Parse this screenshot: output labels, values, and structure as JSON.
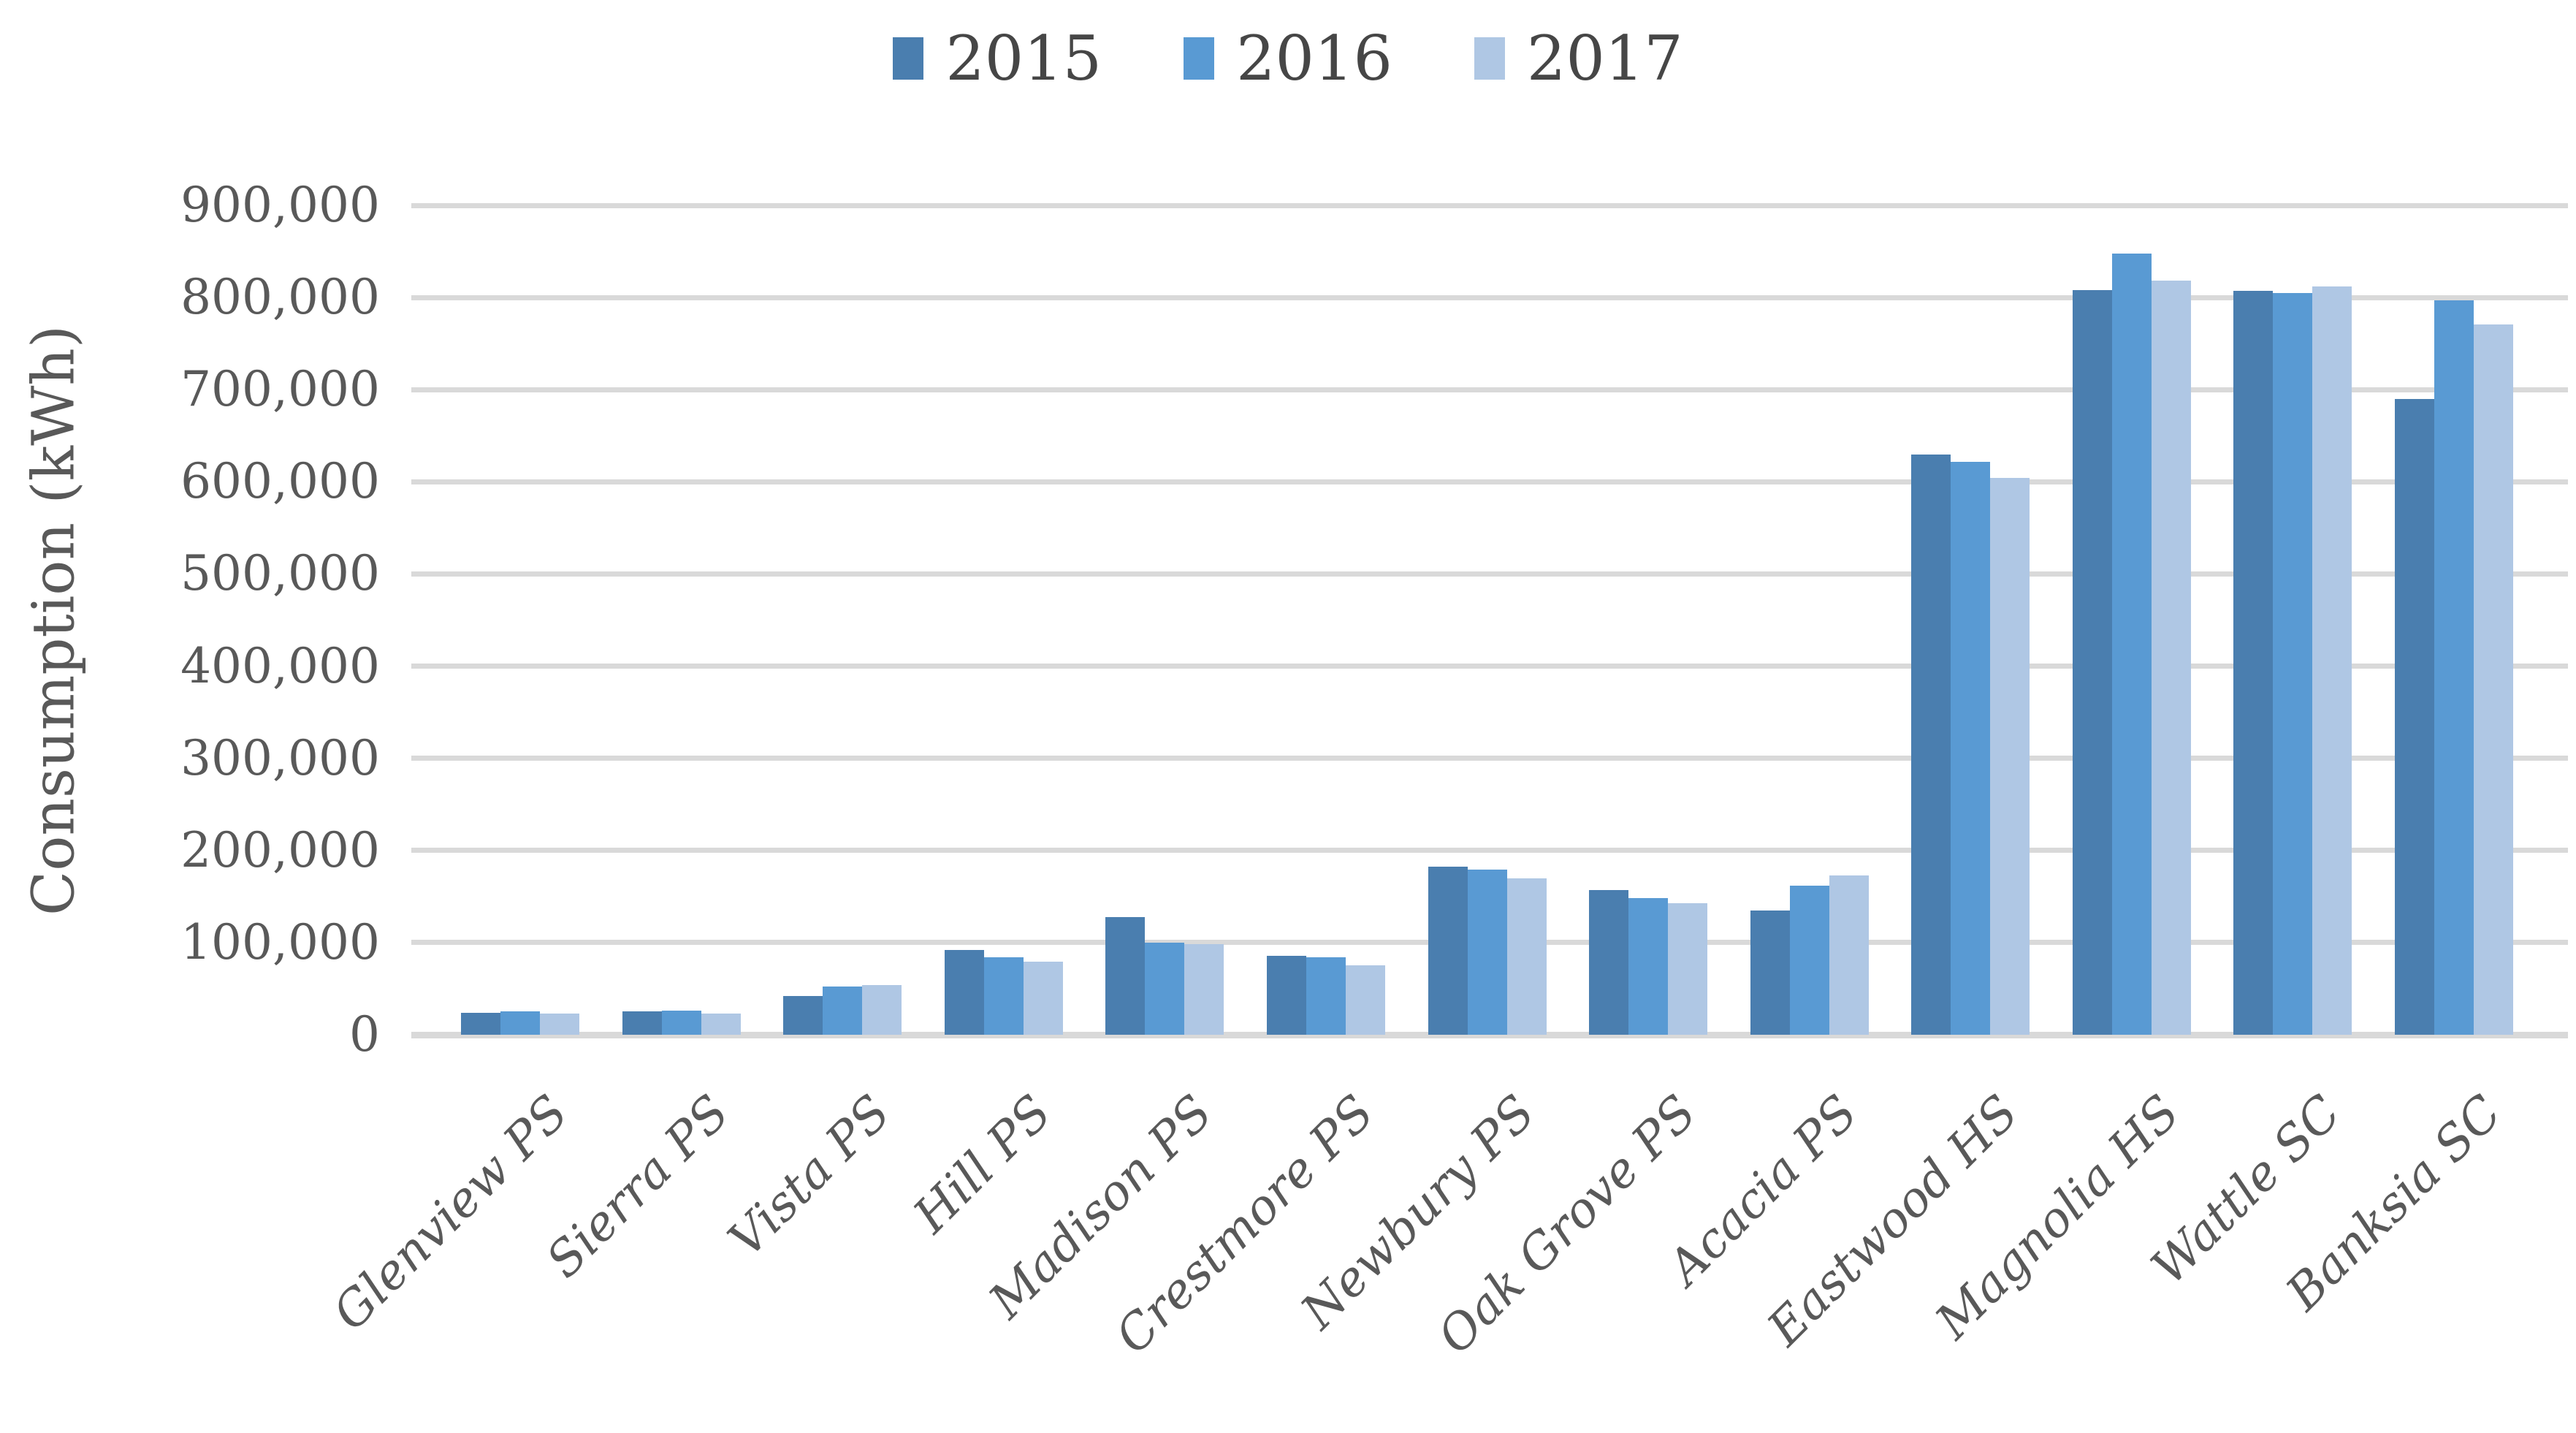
{
  "colors": {
    "grid": "#D9D9D9",
    "axis_text": "#595959",
    "legend_text": "#464646",
    "background": "#FFFFFF"
  },
  "chart_data": {
    "type": "bar",
    "title": "",
    "xlabel": "",
    "ylabel": "Consumption (kWh)",
    "ylim": [
      0,
      900000
    ],
    "ytick_step": 100000,
    "ytick_labels": [
      "0",
      "100,000",
      "200,000",
      "300,000",
      "400,000",
      "500,000",
      "600,000",
      "700,000",
      "800,000",
      "900,000"
    ],
    "grid": true,
    "legend_position": "top",
    "categories": [
      "Glenview PS",
      "Sierra PS",
      "Vista PS",
      "Hill PS",
      "Madison PS",
      "Crestmore PS",
      "Newbury PS",
      "Oak Grove PS",
      "Acacia PS",
      "Eastwood HS",
      "Magnolia HS",
      "Wattle SC",
      "Banksia SC"
    ],
    "series": [
      {
        "name": "2015",
        "color": "#4A7EAF",
        "values": [
          24000,
          25000,
          42000,
          92000,
          128000,
          86000,
          182000,
          157000,
          135000,
          630000,
          808000,
          807000,
          690000
        ]
      },
      {
        "name": "2016",
        "color": "#599AD3",
        "values": [
          25000,
          26000,
          52000,
          84000,
          100000,
          84000,
          179000,
          148000,
          162000,
          622000,
          848000,
          805000,
          797000
        ]
      },
      {
        "name": "2017",
        "color": "#AFC7E4",
        "values": [
          23000,
          23000,
          54000,
          79000,
          98000,
          75000,
          170000,
          143000,
          173000,
          604000,
          818000,
          812000,
          771000
        ]
      }
    ]
  }
}
